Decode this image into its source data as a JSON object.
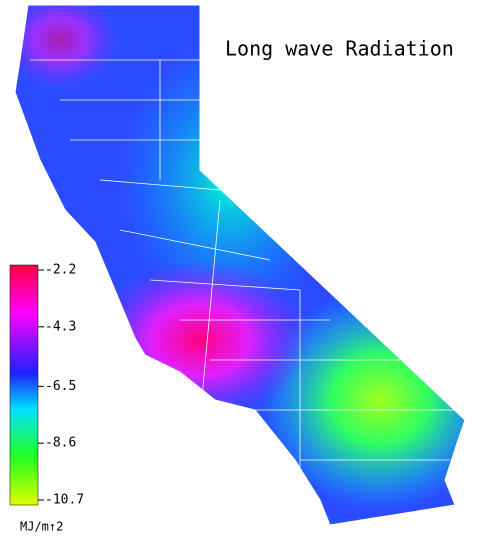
{
  "title": "Long wave Radiation",
  "colorbar": {
    "ticks": [
      -2.2,
      -4.3,
      -6.5,
      -8.6,
      -10.7
    ],
    "unit": "MJ/m↑2"
  }
}
